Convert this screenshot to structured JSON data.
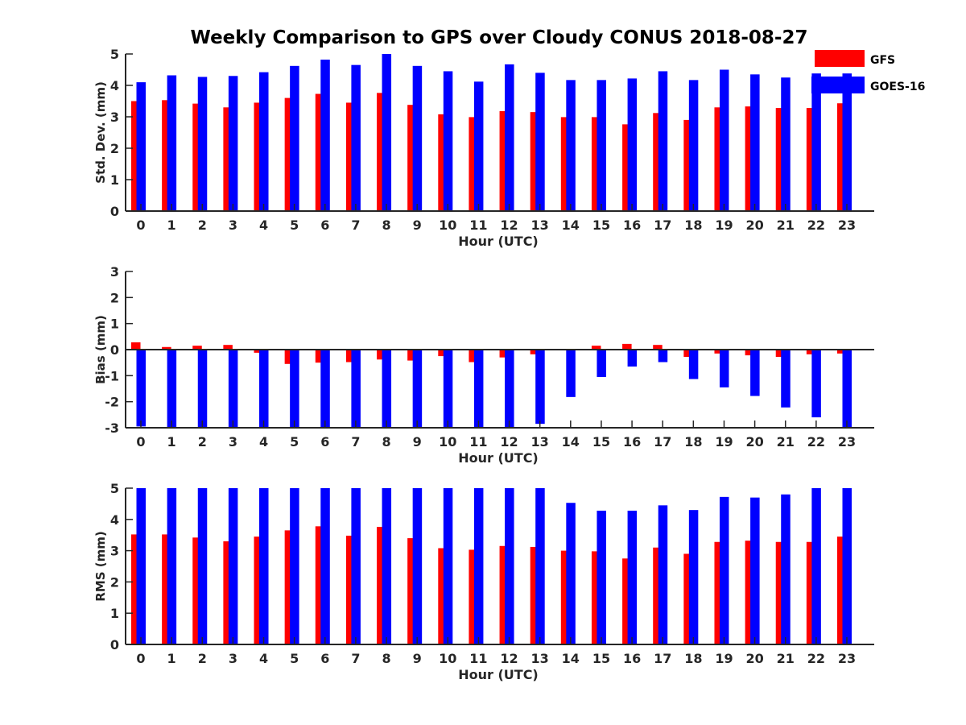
{
  "title": "Weekly Comparison to GPS over Cloudy CONUS 2018-08-27",
  "legend": [
    {
      "name": "GFS",
      "color": "#ff0000"
    },
    {
      "name": "GOES-16",
      "color": "#0000ff"
    }
  ],
  "chart_data": [
    {
      "type": "bar",
      "ylabel": "Std. Dev. (mm)",
      "xlabel": "Hour (UTC)",
      "ylim": [
        0,
        5
      ],
      "yticks": [
        0,
        1,
        2,
        3,
        4,
        5
      ],
      "categories": [
        "0",
        "1",
        "2",
        "3",
        "4",
        "5",
        "6",
        "7",
        "8",
        "9",
        "10",
        "11",
        "12",
        "13",
        "14",
        "15",
        "16",
        "17",
        "18",
        "19",
        "20",
        "21",
        "22",
        "23"
      ],
      "series": [
        {
          "name": "GFS",
          "color": "#ff0000",
          "values": [
            3.5,
            3.53,
            3.42,
            3.3,
            3.45,
            3.6,
            3.73,
            3.45,
            3.76,
            3.38,
            3.08,
            2.99,
            3.18,
            3.15,
            2.99,
            2.99,
            2.76,
            3.12,
            2.9,
            3.3,
            3.33,
            3.28,
            3.28,
            3.43
          ]
        },
        {
          "name": "GOES-16",
          "color": "#0000ff",
          "values": [
            4.1,
            4.32,
            4.27,
            4.3,
            4.42,
            4.62,
            4.82,
            4.65,
            5.0,
            4.62,
            4.45,
            4.12,
            4.67,
            4.4,
            4.17,
            4.17,
            4.22,
            4.45,
            4.17,
            4.5,
            4.35,
            4.25,
            4.38,
            4.38
          ]
        }
      ]
    },
    {
      "type": "bar",
      "ylabel": "Bias (mm)",
      "xlabel": "Hour (UTC)",
      "ylim": [
        -3,
        3
      ],
      "yticks": [
        -3,
        -2,
        -1,
        0,
        1,
        2,
        3
      ],
      "categories": [
        "0",
        "1",
        "2",
        "3",
        "4",
        "5",
        "6",
        "7",
        "8",
        "9",
        "10",
        "11",
        "12",
        "13",
        "14",
        "15",
        "16",
        "17",
        "18",
        "19",
        "20",
        "21",
        "22",
        "23"
      ],
      "series": [
        {
          "name": "GFS",
          "color": "#ff0000",
          "values": [
            0.28,
            0.1,
            0.15,
            0.18,
            -0.12,
            -0.55,
            -0.5,
            -0.48,
            -0.38,
            -0.42,
            -0.25,
            -0.48,
            -0.3,
            -0.18,
            0.02,
            0.15,
            0.22,
            0.18,
            -0.28,
            -0.15,
            -0.22,
            -0.28,
            -0.18,
            -0.15
          ]
        },
        {
          "name": "GOES-16",
          "color": "#0000ff",
          "values": [
            -2.95,
            -3.0,
            -3.0,
            -3.0,
            -3.0,
            -3.0,
            -3.0,
            -3.0,
            -3.0,
            -3.0,
            -3.0,
            -3.0,
            -3.0,
            -2.85,
            -1.82,
            -1.05,
            -0.65,
            -0.48,
            -1.13,
            -1.45,
            -1.78,
            -2.22,
            -2.6,
            -3.0
          ]
        }
      ]
    },
    {
      "type": "bar",
      "ylabel": "RMS (mm)",
      "xlabel": "Hour (UTC)",
      "ylim": [
        0,
        5
      ],
      "yticks": [
        0,
        1,
        2,
        3,
        4,
        5
      ],
      "categories": [
        "0",
        "1",
        "2",
        "3",
        "4",
        "5",
        "6",
        "7",
        "8",
        "9",
        "10",
        "11",
        "12",
        "13",
        "14",
        "15",
        "16",
        "17",
        "18",
        "19",
        "20",
        "21",
        "22",
        "23"
      ],
      "series": [
        {
          "name": "GFS",
          "color": "#ff0000",
          "values": [
            3.52,
            3.52,
            3.42,
            3.3,
            3.45,
            3.65,
            3.78,
            3.48,
            3.76,
            3.4,
            3.08,
            3.03,
            3.15,
            3.12,
            3.0,
            2.98,
            2.75,
            3.1,
            2.9,
            3.28,
            3.32,
            3.28,
            3.28,
            3.45
          ]
        },
        {
          "name": "GOES-16",
          "color": "#0000ff",
          "values": [
            5.0,
            5.0,
            5.0,
            5.0,
            5.0,
            5.0,
            5.0,
            5.0,
            5.0,
            5.0,
            5.0,
            5.0,
            5.0,
            5.0,
            4.53,
            4.28,
            4.28,
            4.45,
            4.3,
            4.72,
            4.7,
            4.8,
            5.0,
            5.0
          ]
        }
      ]
    }
  ]
}
